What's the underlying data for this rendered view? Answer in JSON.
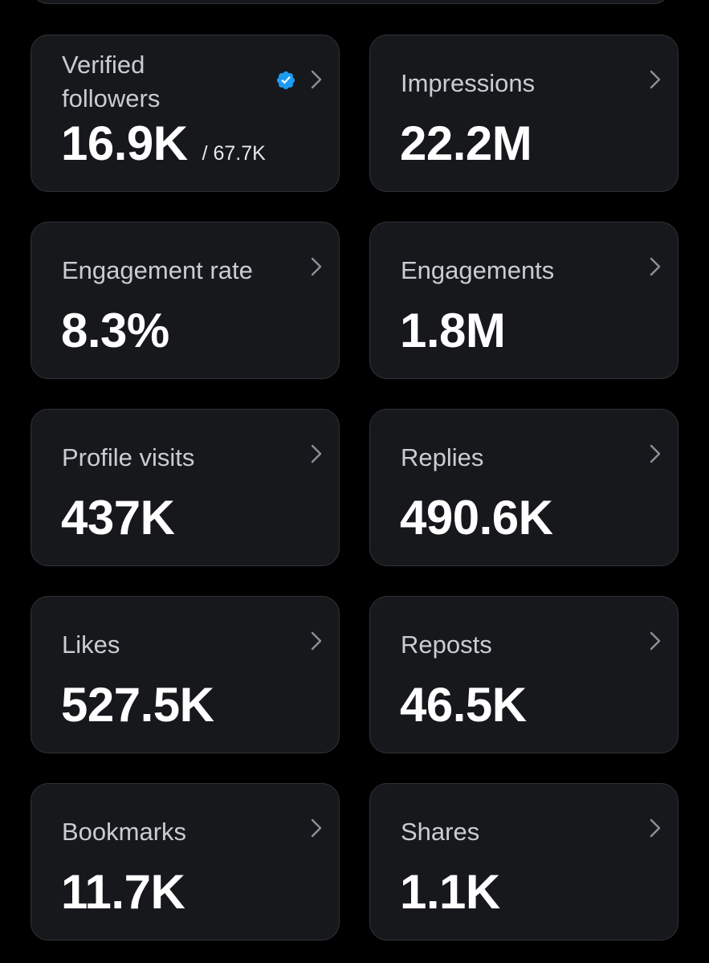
{
  "stats": [
    {
      "id": "verified-followers",
      "label": "Verified followers",
      "value": "16.9K",
      "suffix": "/ 67.7K",
      "verified": true
    },
    {
      "id": "impressions",
      "label": "Impressions",
      "value": "22.2M"
    },
    {
      "id": "engagement-rate",
      "label": "Engagement rate",
      "value": "8.3%"
    },
    {
      "id": "engagements",
      "label": "Engagements",
      "value": "1.8M"
    },
    {
      "id": "profile-visits",
      "label": "Profile visits",
      "value": "437K"
    },
    {
      "id": "replies",
      "label": "Replies",
      "value": "490.6K"
    },
    {
      "id": "likes",
      "label": "Likes",
      "value": "527.5K"
    },
    {
      "id": "reposts",
      "label": "Reposts",
      "value": "46.5K"
    },
    {
      "id": "bookmarks",
      "label": "Bookmarks",
      "value": "11.7K"
    },
    {
      "id": "shares",
      "label": "Shares",
      "value": "1.1K"
    }
  ],
  "icons": {
    "chevron": "chevron-right-icon",
    "verified": "verified-badge-icon"
  },
  "colors": {
    "background": "#000000",
    "card": "#16181c",
    "border": "#2f3336",
    "verified_blue": "#1d9bf0"
  }
}
